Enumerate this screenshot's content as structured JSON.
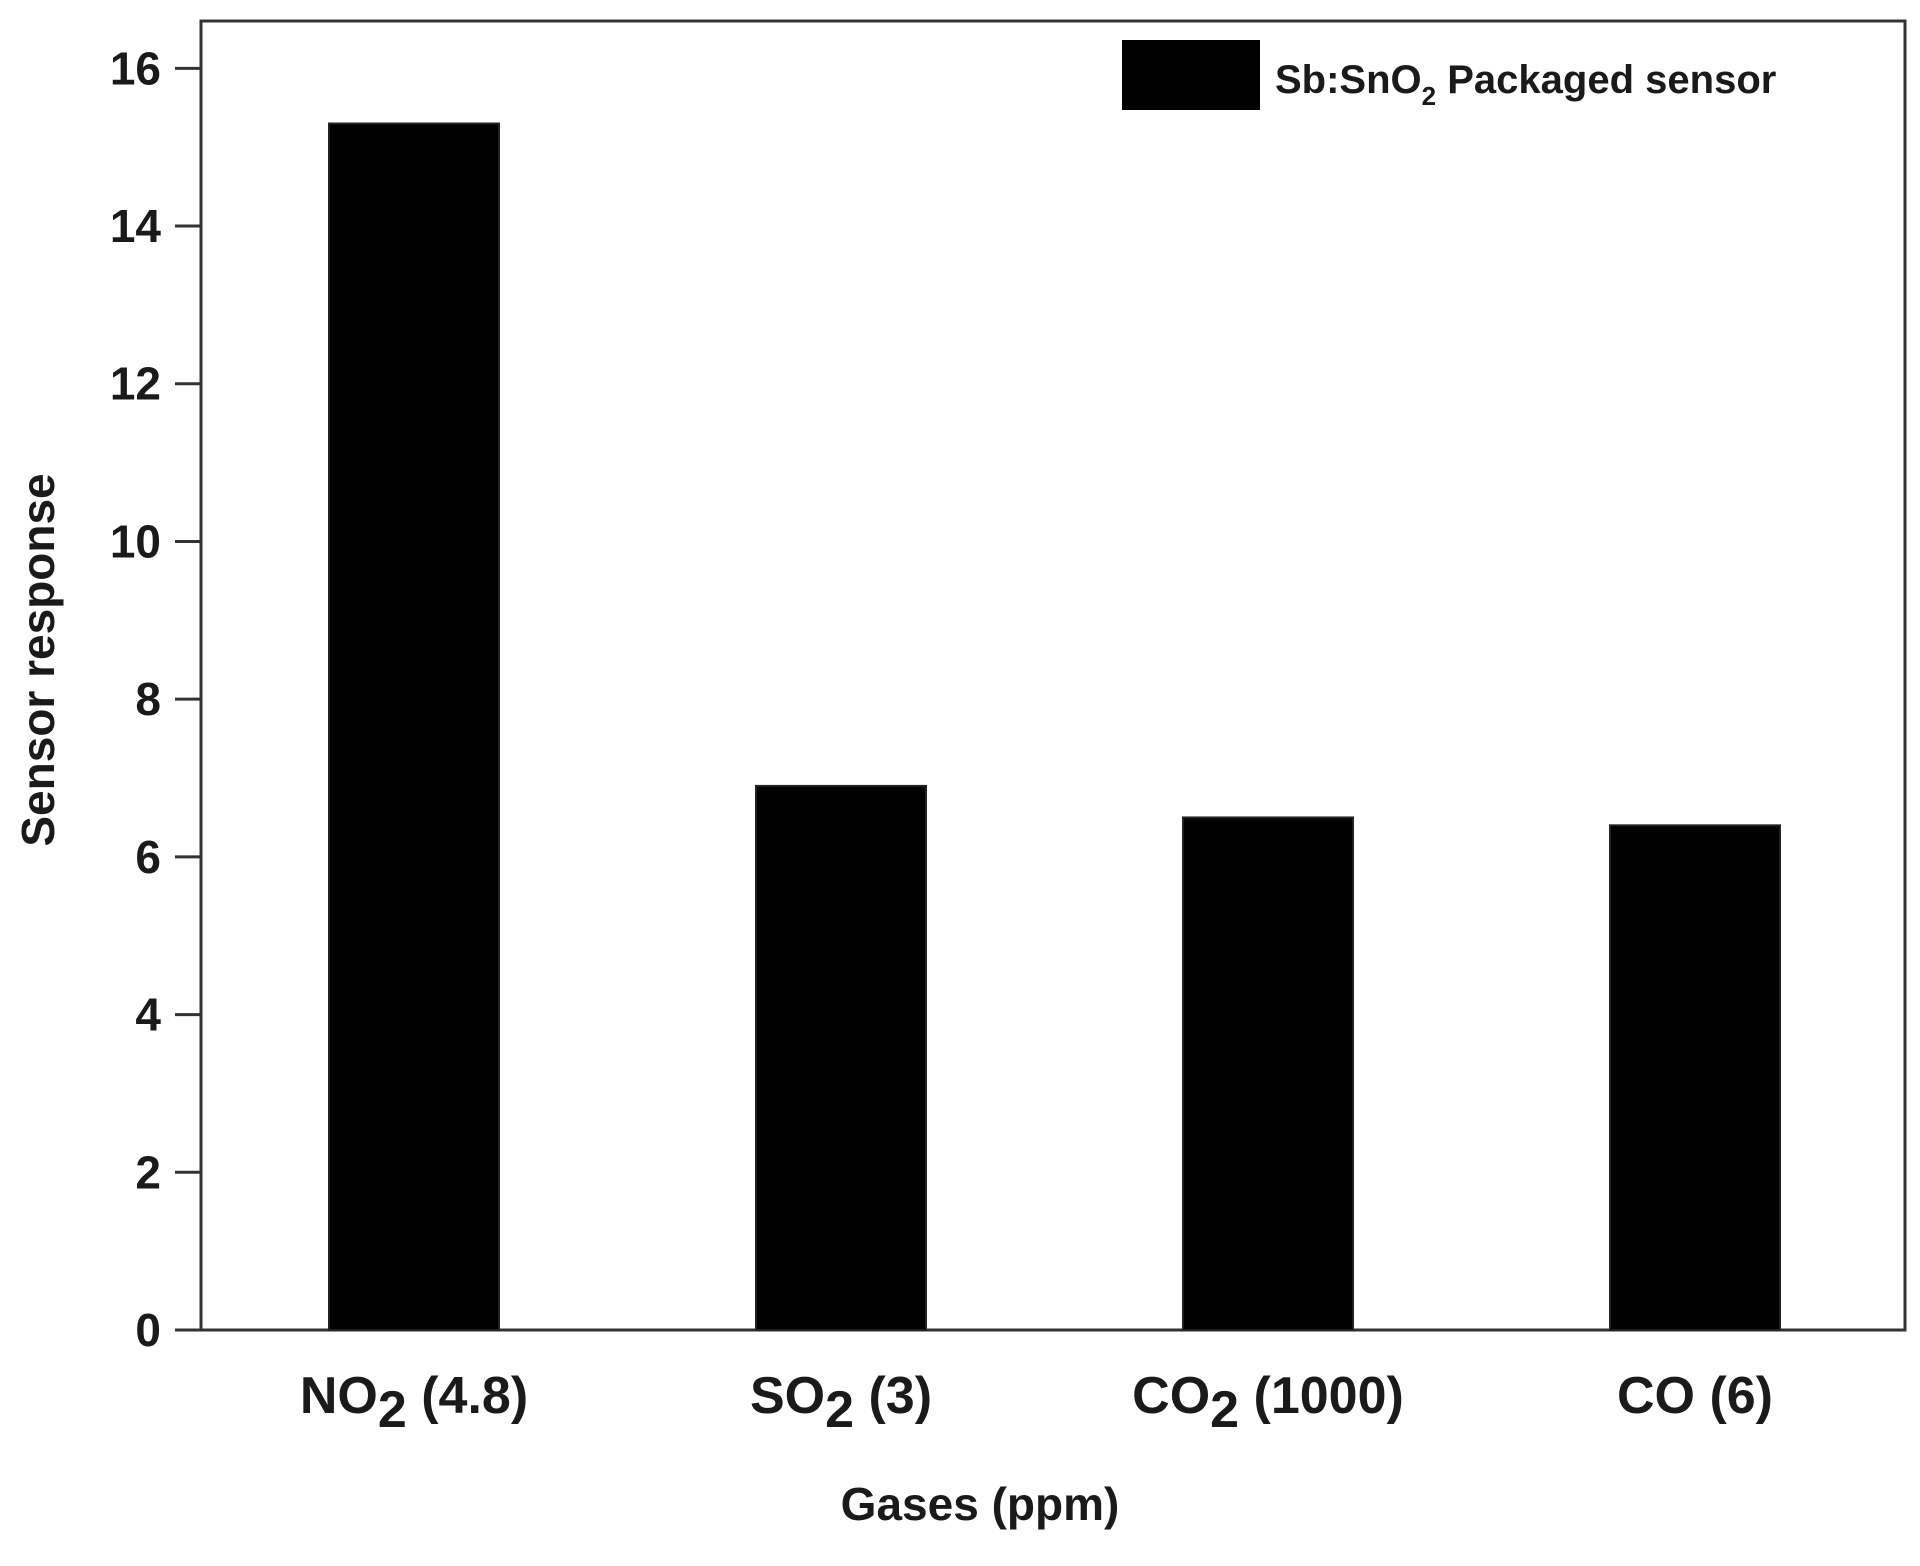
{
  "chart_data": {
    "type": "bar",
    "categories": [
      "NO2 (4.8)",
      "SO2 (3)",
      "CO2 (1000)",
      "CO (6)"
    ],
    "category_parts": [
      {
        "base": "NO",
        "sub": "2",
        "rest": " (4.8)"
      },
      {
        "base": "SO",
        "sub": "2",
        "rest": " (3)"
      },
      {
        "base": "CO",
        "sub": "2",
        "rest": " (1000)"
      },
      {
        "base": "CO (6)",
        "sub": "",
        "rest": ""
      }
    ],
    "series": [
      {
        "name": "Sb:SnO2 Packaged sensor",
        "values": [
          15.3,
          6.9,
          6.5,
          6.4
        ],
        "color": "#000000"
      }
    ],
    "legend_parts": {
      "base": "Sb:SnO",
      "sub": "2",
      "rest": " Packaged sensor"
    },
    "xlabel": "Gases (ppm)",
    "ylabel": "Sensor response",
    "ylim": [
      0,
      16.6
    ],
    "yticks": [
      0,
      2,
      4,
      6,
      8,
      10,
      12,
      14,
      16
    ],
    "grid": false,
    "legend_position": "top-right"
  }
}
